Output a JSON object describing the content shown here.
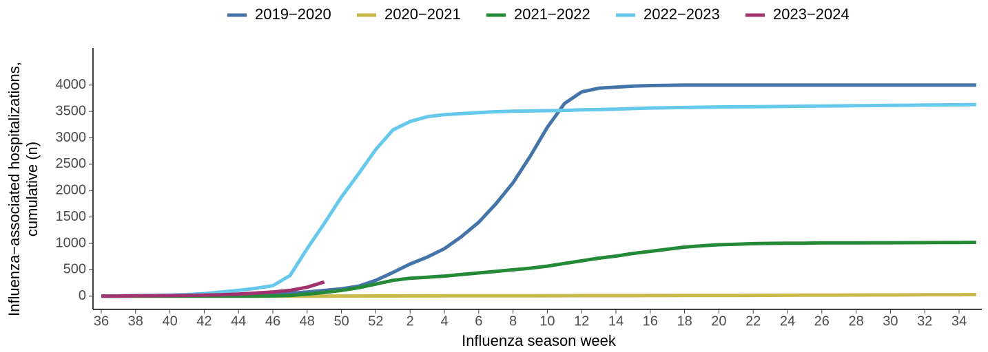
{
  "chart_data": {
    "type": "line",
    "x_label": "Influenza season week",
    "y_label": [
      "Influenza−associated hospitalizations,",
      "cumulative (n)"
    ],
    "categories": [
      "36",
      null,
      "38",
      null,
      "40",
      null,
      "42",
      null,
      "44",
      null,
      "46",
      null,
      "48",
      null,
      "50",
      null,
      "52",
      null,
      "2",
      null,
      "4",
      null,
      "6",
      null,
      "8",
      null,
      "10",
      null,
      "12",
      null,
      "14",
      null,
      "16",
      null,
      "18",
      null,
      "20",
      null,
      "22",
      null,
      "24",
      null,
      "26",
      null,
      "28",
      null,
      "30",
      null,
      "32",
      null,
      "34",
      null
    ],
    "series": [
      {
        "name": "2019−2020",
        "color": "#4575a8",
        "values": [
          0,
          2,
          4,
          6,
          8,
          10,
          15,
          20,
          25,
          30,
          40,
          55,
          80,
          110,
          140,
          190,
          300,
          450,
          610,
          740,
          900,
          1130,
          1400,
          1750,
          2150,
          2650,
          3200,
          3650,
          3870,
          3940,
          3960,
          3980,
          3990,
          3995,
          4000,
          4000,
          4000,
          4000,
          4000,
          4000,
          4000,
          4000,
          4000,
          4000,
          4000,
          4000,
          4000,
          4000,
          4000,
          4000,
          4000,
          4000
        ]
      },
      {
        "name": "2020−2021",
        "color": "#c9b84a",
        "values": [
          0,
          0,
          0,
          0,
          0,
          0,
          0,
          0,
          0,
          1,
          1,
          1,
          2,
          2,
          3,
          3,
          4,
          4,
          5,
          5,
          6,
          6,
          7,
          7,
          8,
          8,
          9,
          9,
          10,
          10,
          11,
          11,
          12,
          12,
          13,
          13,
          14,
          15,
          16,
          17,
          18,
          19,
          20,
          21,
          22,
          23,
          24,
          25,
          26,
          27,
          28,
          30
        ]
      },
      {
        "name": "2021−2022",
        "color": "#258a38",
        "values": [
          0,
          0,
          0,
          0,
          0,
          0,
          0,
          0,
          0,
          2,
          5,
          15,
          40,
          70,
          110,
          160,
          230,
          300,
          340,
          360,
          380,
          410,
          440,
          470,
          500,
          530,
          570,
          620,
          670,
          720,
          760,
          810,
          850,
          890,
          930,
          955,
          975,
          985,
          995,
          1000,
          1005,
          1005,
          1010,
          1010,
          1010,
          1012,
          1012,
          1014,
          1015,
          1016,
          1018,
          1020
        ]
      },
      {
        "name": "2022−2023",
        "color": "#66c9eb",
        "values": [
          0,
          5,
          10,
          15,
          20,
          30,
          50,
          80,
          110,
          150,
          200,
          390,
          900,
          1380,
          1880,
          2320,
          2780,
          3150,
          3310,
          3400,
          3440,
          3460,
          3480,
          3495,
          3505,
          3510,
          3515,
          3520,
          3530,
          3535,
          3545,
          3555,
          3565,
          3570,
          3575,
          3580,
          3585,
          3588,
          3590,
          3593,
          3596,
          3600,
          3603,
          3606,
          3609,
          3612,
          3615,
          3618,
          3621,
          3624,
          3627,
          3630
        ]
      },
      {
        "name": "2023−2024",
        "color": "#a0336f",
        "values": [
          0,
          3,
          6,
          9,
          12,
          16,
          20,
          28,
          40,
          60,
          80,
          110,
          170,
          270,
          null,
          null,
          null,
          null,
          null,
          null,
          null,
          null,
          null,
          null,
          null,
          null,
          null,
          null,
          null,
          null,
          null,
          null,
          null,
          null,
          null,
          null,
          null,
          null,
          null,
          null,
          null,
          null,
          null,
          null,
          null,
          null,
          null,
          null,
          null,
          null,
          null,
          null
        ]
      }
    ],
    "ylim": [
      -250,
      4700
    ],
    "yticks": [
      0,
      500,
      1000,
      1500,
      2000,
      2500,
      3000,
      3500,
      4000
    ],
    "legend": "top"
  }
}
